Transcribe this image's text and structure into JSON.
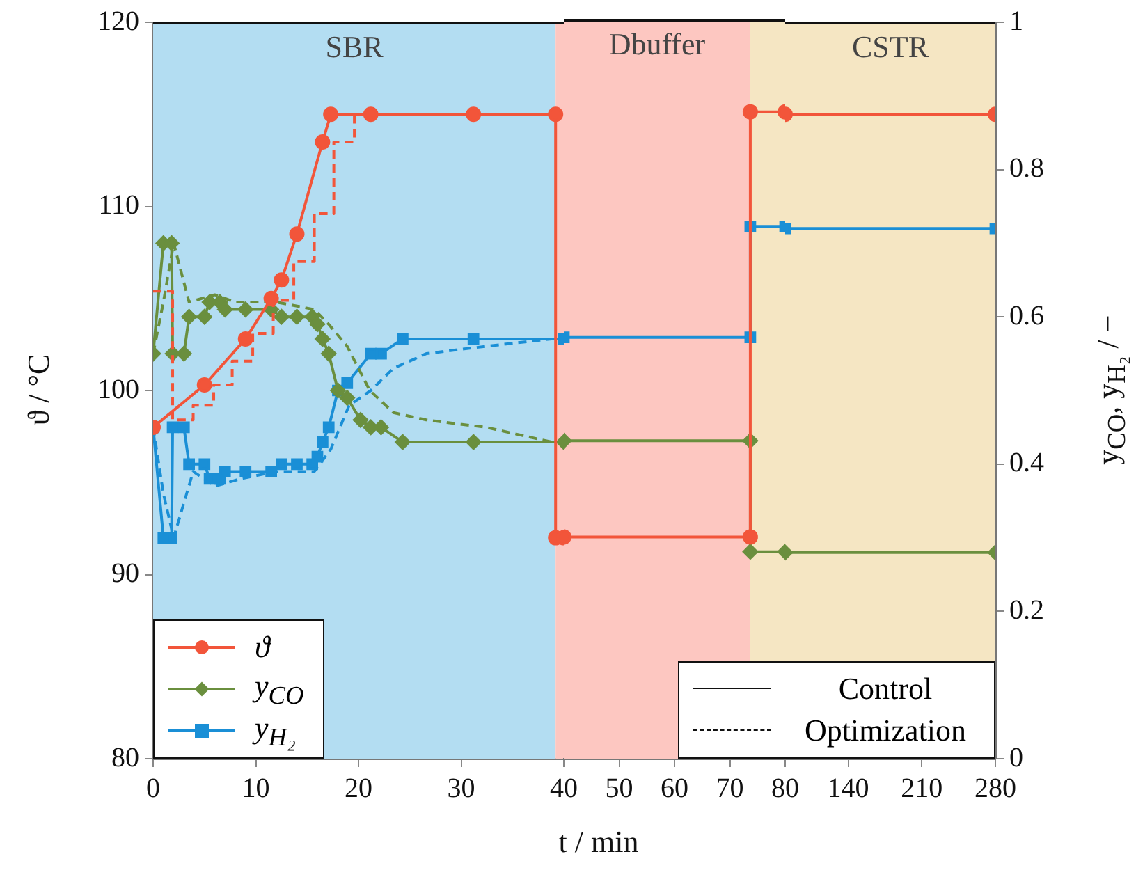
{
  "chart_data": [
    {
      "type": "line",
      "ylabel": "ϑ / °C",
      "xlim": [
        0,
        40
      ],
      "xticks": [
        0,
        10,
        20,
        30,
        40
      ],
      "ylim": [
        80,
        120
      ],
      "yticks": [
        80,
        90,
        100,
        110,
        120
      ],
      "y2lim": [
        0,
        1
      ],
      "tick_labels": "xy",
      "grid": false,
      "legend": "bottom left",
      "bands": [
        {
          "axis": "x",
          "from": 0,
          "to": 39.2,
          "label": "SBR",
          "color": "#b3ddf2"
        },
        {
          "axis": "x",
          "from": 39.2,
          "to": 40,
          "color": "#fdc7c1"
        }
      ],
      "series": [
        {
          "name": "ϑ",
          "color": "#f2553a",
          "marker": "circle",
          "line_style": "solid",
          "x": [
            0,
            5,
            9,
            11.5,
            12.5,
            14,
            16.5,
            17.3,
            21.2,
            31.2,
            39.2,
            39.2,
            40
          ],
          "values": [
            98,
            100.3,
            102.8,
            105,
            106,
            108.5,
            113.5,
            115,
            115,
            115,
            115,
            92,
            92
          ]
        },
        {
          "color": "#f2553a",
          "marker": "none",
          "line_style": "dashed",
          "x": [
            0,
            1.9,
            1.9,
            3.9,
            3.9,
            5.9,
            5.9,
            7.7,
            7.7,
            9.7,
            9.7,
            11.7,
            11.7,
            13.7,
            13.7,
            15.7,
            15.7,
            17.6,
            17.6,
            19.6,
            19.6,
            39.2
          ],
          "values": [
            105.4,
            105.4,
            98.4,
            98.4,
            99.2,
            99.2,
            100.3,
            100.3,
            101.6,
            101.6,
            103.1,
            103.1,
            104.9,
            104.9,
            107,
            107,
            109.6,
            109.6,
            113.5,
            113.5,
            115,
            115
          ]
        },
        {
          "name": "y$_{CO}$",
          "color": "#6a8f3e",
          "marker": "diamond",
          "line_style": "solid",
          "axis": "y2",
          "x": [
            0,
            1,
            1.8,
            1.9,
            3,
            3.5,
            5,
            5.5,
            6.5,
            7,
            9,
            11.5,
            12.5,
            14,
            15.5,
            16,
            16.5,
            17.1,
            18,
            18.9,
            20.2,
            21.2,
            22.2,
            24.3,
            31.2,
            40
          ],
          "values": [
            0.55,
            0.7,
            0.7,
            0.55,
            0.55,
            0.6,
            0.6,
            0.62,
            0.62,
            0.61,
            0.61,
            0.61,
            0.6,
            0.6,
            0.6,
            0.59,
            0.57,
            0.55,
            0.5,
            0.49,
            0.46,
            0.45,
            0.45,
            0.43,
            0.43,
            0.43
          ]
        },
        {
          "color": "#6a8f3e",
          "marker": "none",
          "line_style": "dashed",
          "axis": "y2",
          "x": [
            0,
            1,
            2,
            3.5,
            6,
            8,
            12,
            15.7,
            17.1,
            18.9,
            21.1,
            23.4,
            26.6,
            32.4,
            38.8
          ],
          "values": [
            0.55,
            0.62,
            0.7,
            0.62,
            0.63,
            0.62,
            0.62,
            0.61,
            0.59,
            0.56,
            0.5,
            0.47,
            0.46,
            0.45,
            0.43
          ]
        },
        {
          "name": "y$_{H₂}$",
          "color": "#1a8fd6",
          "marker": "square",
          "line_style": "solid",
          "axis": "y2",
          "x": [
            0,
            1,
            1.8,
            1.9,
            3,
            3.5,
            5,
            5.5,
            6.5,
            7,
            9,
            11.5,
            12.5,
            14,
            15.5,
            16,
            16.5,
            17.1,
            18,
            18.9,
            21.2,
            22.2,
            24.3,
            31.2,
            40
          ],
          "values": [
            0.45,
            0.3,
            0.3,
            0.45,
            0.45,
            0.4,
            0.4,
            0.38,
            0.38,
            0.39,
            0.39,
            0.39,
            0.4,
            0.4,
            0.4,
            0.41,
            0.43,
            0.45,
            0.5,
            0.51,
            0.55,
            0.55,
            0.57,
            0.57,
            0.57
          ]
        },
        {
          "color": "#1a8fd6",
          "marker": "none",
          "line_style": "dashed",
          "axis": "y2",
          "x": [
            0,
            1,
            2,
            3.9,
            6,
            8.5,
            12,
            15.7,
            17.3,
            19.1,
            21.2,
            23.4,
            26.6,
            32.4,
            38.8
          ],
          "values": [
            0.45,
            0.36,
            0.3,
            0.39,
            0.37,
            0.38,
            0.39,
            0.39,
            0.42,
            0.48,
            0.5,
            0.53,
            0.55,
            0.56,
            0.57
          ]
        }
      ]
    },
    {
      "type": "line",
      "xlabel": "t / min",
      "xlim": [
        40,
        80
      ],
      "xticks": [
        50,
        60,
        70,
        80
      ],
      "ylim": [
        80,
        120
      ],
      "y2lim": [
        0,
        1
      ],
      "tick_labels": "x",
      "grid": false,
      "bands": [
        {
          "axis": "x",
          "from": 40,
          "to": 73.7,
          "label": "Dbuffer",
          "color": "#fdc7c1"
        },
        {
          "axis": "x",
          "from": 73.7,
          "to": 80,
          "color": "#f5e6c3"
        }
      ],
      "series": [
        {
          "color": "#f2553a",
          "marker": "circle",
          "line_style": "solid",
          "x": [
            40,
            73.7,
            73.7,
            80
          ],
          "values": [
            92,
            92,
            115,
            115
          ]
        },
        {
          "color": "#6a8f3e",
          "marker": "diamond",
          "line_style": "solid",
          "axis": "y2",
          "x": [
            40,
            73.7,
            73.7,
            80
          ],
          "values": [
            0.43,
            0.43,
            0.28,
            0.28
          ]
        },
        {
          "color": "#1a8fd6",
          "marker": "square",
          "line_style": "solid",
          "axis": "y2",
          "x": [
            40,
            73.7,
            73.7,
            80
          ],
          "values": [
            0.57,
            0.57,
            0.72,
            0.72
          ]
        }
      ]
    },
    {
      "type": "line",
      "y2label": "y$_{CO}$, y$_{H₂}$ / −",
      "xlim": [
        80,
        280
      ],
      "xticks": [
        140,
        210,
        280
      ],
      "ylim": [
        80,
        120
      ],
      "y2lim": [
        0,
        1
      ],
      "y2ticks": [
        0,
        0.2,
        0.4,
        0.6,
        0.8,
        1
      ],
      "tick_labels": "xy2",
      "grid": false,
      "annotations": [
        "Control",
        "Optimization"
      ],
      "bands": [
        {
          "axis": "x",
          "from": 80,
          "to": 280,
          "label": "CSTR",
          "color": "#f5e6c3"
        }
      ],
      "series": [
        {
          "color": "#f2553a",
          "marker": "circle",
          "line_style": "solid",
          "x": [
            80,
            280
          ],
          "values": [
            115,
            115
          ]
        },
        {
          "color": "#6a8f3e",
          "marker": "diamond",
          "line_style": "solid",
          "axis": "y2",
          "x": [
            80,
            280
          ],
          "values": [
            0.28,
            0.28
          ]
        },
        {
          "color": "#1a8fd6",
          "marker": "square",
          "line_style": "solid",
          "axis": "y2",
          "x": [
            80,
            280
          ],
          "values": [
            0.72,
            0.72
          ]
        }
      ]
    }
  ]
}
